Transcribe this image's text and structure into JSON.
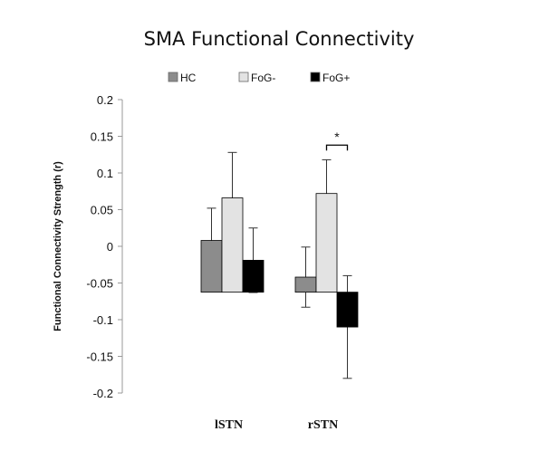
{
  "chart_data": {
    "type": "bar",
    "title": "SMA Functional Connectivity",
    "ylabel": "Functional Connectivity Strength (r)",
    "xlabel": "",
    "ylim": [
      -0.2,
      0.2
    ],
    "ytick_step": 0.05,
    "bar_baseline": -0.0625,
    "yticks": [
      "0.2",
      "0.15",
      "0.1",
      "0.05",
      "0",
      "-0.05",
      "-0.1",
      "-0.15",
      "-0.2"
    ],
    "categories": [
      "lSTN",
      "rSTN"
    ],
    "series": [
      {
        "name": "HC",
        "color": "#8c8c8c",
        "values": [
          0.008,
          -0.042
        ],
        "error_low": [
          -0.038,
          -0.083
        ],
        "error_high": [
          0.052,
          -0.001
        ]
      },
      {
        "name": "FoG-",
        "color": "#e3e3e3",
        "values": [
          0.066,
          0.072
        ],
        "error_low": [
          0.004,
          0.028
        ],
        "error_high": [
          0.128,
          0.118
        ]
      },
      {
        "name": "FoG+",
        "color": "#000000",
        "values": [
          -0.019,
          -0.11
        ],
        "error_low": [
          -0.063,
          -0.18
        ],
        "error_high": [
          0.025,
          -0.04
        ]
      }
    ],
    "legend_position": "top",
    "grid": false,
    "annotations": [
      {
        "text": "*",
        "category": "rSTN",
        "between": [
          "FoG-",
          "FoG+"
        ],
        "y": 0.138
      }
    ]
  }
}
